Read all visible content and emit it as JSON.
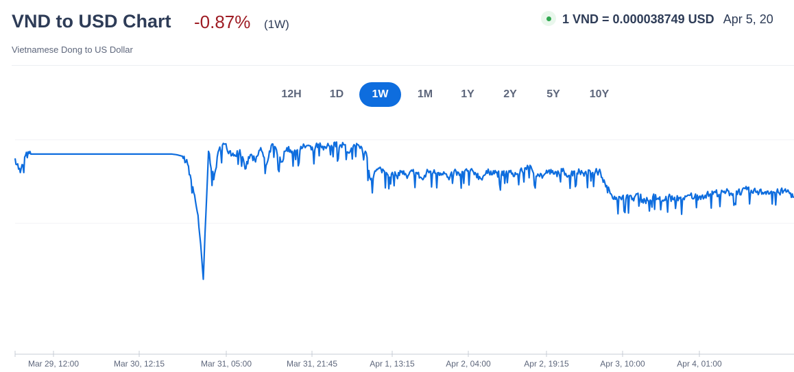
{
  "header": {
    "title": "VND to USD Chart",
    "change": "-0.87%",
    "period": "(1W)",
    "subtitle": "Vietnamese Dong to US Dollar"
  },
  "rate": {
    "value": "1 VND = 0.000038749 USD",
    "time": "Apr 5, 20"
  },
  "ranges": [
    {
      "label": "12H",
      "active": false
    },
    {
      "label": "1D",
      "active": false
    },
    {
      "label": "1W",
      "active": true
    },
    {
      "label": "1M",
      "active": false
    },
    {
      "label": "1Y",
      "active": false
    },
    {
      "label": "2Y",
      "active": false
    },
    {
      "label": "5Y",
      "active": false
    },
    {
      "label": "10Y",
      "active": false
    }
  ],
  "colors": {
    "line": "#0e6dde",
    "accent": "#0e6dde",
    "negative": "#9e1c24",
    "live": "#2fa84f"
  },
  "chart_data": {
    "type": "line",
    "title": "",
    "xlabel": "",
    "ylabel": "",
    "x_ticks": [
      "Mar 29, 12:00",
      "Mar 30, 12:15",
      "Mar 31, 05:00",
      "Mar 31, 21:45",
      "Apr 1, 13:15",
      "Apr 2, 04:00",
      "Apr 2, 19:15",
      "Apr 3, 10:00",
      "Apr 4, 01:00"
    ],
    "grid": "horizontal",
    "series": [
      {
        "anchors": [
          [
            0,
            0.73
          ],
          [
            1,
            0.71
          ],
          [
            2,
            0.734
          ],
          [
            3,
            0.736
          ],
          [
            4,
            0.736
          ],
          [
            5,
            0.736
          ],
          [
            6,
            0.736
          ],
          [
            7,
            0.736
          ],
          [
            8,
            0.736
          ],
          [
            9,
            0.736
          ],
          [
            10,
            0.736
          ],
          [
            11,
            0.736
          ],
          [
            12,
            0.736
          ],
          [
            13,
            0.736
          ],
          [
            14,
            0.736
          ],
          [
            15,
            0.736
          ],
          [
            16,
            0.736
          ],
          [
            17,
            0.736
          ],
          [
            18,
            0.736
          ],
          [
            19,
            0.736
          ],
          [
            20,
            0.736
          ],
          [
            21,
            0.736
          ],
          [
            22,
            0.736
          ],
          [
            23,
            0.736
          ],
          [
            24,
            0.736
          ],
          [
            25,
            0.736
          ],
          [
            26,
            0.736
          ],
          [
            27,
            0.736
          ],
          [
            28,
            0.736
          ],
          [
            29,
            0.736
          ],
          [
            30,
            0.736
          ],
          [
            31,
            0.735
          ],
          [
            32,
            0.733
          ],
          [
            33,
            0.722
          ],
          [
            34,
            0.69
          ],
          [
            35,
            0.65
          ],
          [
            36,
            0.56
          ],
          [
            37,
            0.74
          ],
          [
            38,
            0.7
          ],
          [
            39,
            0.742
          ],
          [
            40,
            0.75
          ],
          [
            41,
            0.74
          ],
          [
            42,
            0.735
          ],
          [
            43,
            0.742
          ],
          [
            44,
            0.715
          ],
          [
            45,
            0.735
          ],
          [
            46,
            0.725
          ],
          [
            47,
            0.745
          ],
          [
            48,
            0.72
          ],
          [
            49,
            0.748
          ],
          [
            50,
            0.742
          ],
          [
            51,
            0.725
          ],
          [
            52,
            0.745
          ],
          [
            53,
            0.74
          ],
          [
            54,
            0.742
          ],
          [
            55,
            0.745
          ],
          [
            56,
            0.748
          ],
          [
            57,
            0.74
          ],
          [
            58,
            0.75
          ],
          [
            59,
            0.742
          ],
          [
            60,
            0.748
          ],
          [
            61,
            0.752
          ],
          [
            62,
            0.745
          ],
          [
            63,
            0.749
          ],
          [
            64,
            0.738
          ],
          [
            65,
            0.748
          ],
          [
            66,
            0.744
          ],
          [
            67,
            0.74
          ],
          [
            68,
            0.7
          ],
          [
            69,
            0.712
          ],
          [
            70,
            0.715
          ],
          [
            71,
            0.71
          ],
          [
            72,
            0.708
          ],
          [
            73,
            0.705
          ],
          [
            74,
            0.712
          ],
          [
            75,
            0.702
          ],
          [
            76,
            0.712
          ],
          [
            77,
            0.708
          ],
          [
            78,
            0.7
          ],
          [
            79,
            0.712
          ],
          [
            80,
            0.71
          ],
          [
            81,
            0.71
          ],
          [
            82,
            0.711
          ],
          [
            83,
            0.7
          ],
          [
            84,
            0.712
          ],
          [
            85,
            0.706
          ],
          [
            86,
            0.712
          ],
          [
            87,
            0.711
          ],
          [
            88,
            0.71
          ],
          [
            89,
            0.702
          ],
          [
            90,
            0.708
          ],
          [
            91,
            0.712
          ],
          [
            92,
            0.71
          ],
          [
            93,
            0.706
          ],
          [
            94,
            0.712
          ],
          [
            95,
            0.708
          ],
          [
            96,
            0.708
          ],
          [
            97,
            0.712
          ],
          [
            98,
            0.72
          ],
          [
            99,
            0.712
          ],
          [
            100,
            0.708
          ],
          [
            101,
            0.705
          ],
          [
            102,
            0.712
          ],
          [
            103,
            0.708
          ],
          [
            104,
            0.71
          ],
          [
            105,
            0.712
          ],
          [
            106,
            0.706
          ],
          [
            107,
            0.712
          ],
          [
            108,
            0.711
          ],
          [
            109,
            0.71
          ],
          [
            110,
            0.712
          ],
          [
            111,
            0.711
          ],
          [
            112,
            0.71
          ],
          [
            113,
            0.69
          ],
          [
            114,
            0.68
          ],
          [
            115,
            0.675
          ],
          [
            116,
            0.672
          ],
          [
            117,
            0.678
          ],
          [
            118,
            0.672
          ],
          [
            119,
            0.68
          ],
          [
            120,
            0.672
          ],
          [
            121,
            0.671
          ],
          [
            122,
            0.676
          ],
          [
            123,
            0.674
          ],
          [
            124,
            0.67
          ],
          [
            125,
            0.676
          ],
          [
            126,
            0.672
          ],
          [
            127,
            0.675
          ],
          [
            128,
            0.672
          ],
          [
            129,
            0.678
          ],
          [
            130,
            0.676
          ],
          [
            131,
            0.677
          ],
          [
            132,
            0.678
          ],
          [
            133,
            0.68
          ],
          [
            134,
            0.682
          ],
          [
            135,
            0.68
          ],
          [
            136,
            0.683
          ],
          [
            137,
            0.681
          ],
          [
            138,
            0.684
          ],
          [
            139,
            0.683
          ],
          [
            140,
            0.686
          ],
          [
            141,
            0.682
          ],
          [
            142,
            0.684
          ],
          [
            143,
            0.682
          ],
          [
            144,
            0.684
          ],
          [
            145,
            0.683
          ],
          [
            146,
            0.682
          ],
          [
            147,
            0.684
          ],
          [
            148,
            0.683
          ],
          [
            149,
            0.676
          ]
        ],
        "x_max": 149
      }
    ],
    "ylim": [
      0.5,
      0.76
    ]
  }
}
